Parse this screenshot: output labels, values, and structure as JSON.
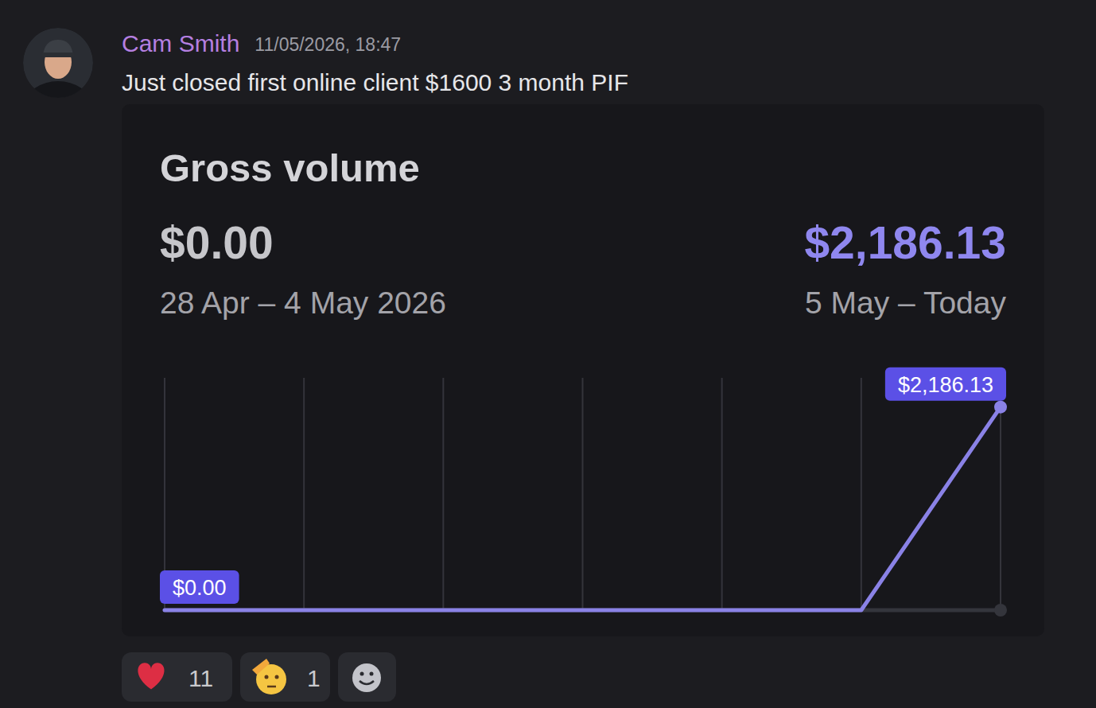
{
  "message": {
    "author": "Cam Smith",
    "timestamp": "11/05/2026, 18:47",
    "text": "Just closed first online client $1600 3 month PIF"
  },
  "chart_data": {
    "type": "line",
    "title": "Gross volume",
    "summary": [
      {
        "label": "$0.00",
        "period": "28 Apr – 4 May 2026"
      },
      {
        "label": "$2,186.13",
        "period": "5 May – Today"
      }
    ],
    "categories": [
      null,
      null,
      null,
      null,
      null,
      null,
      null
    ],
    "series": [
      {
        "color": "#34353c",
        "marker": "end-dot",
        "values": [
          0,
          0,
          0,
          0,
          0,
          0,
          0
        ]
      },
      {
        "color": "#8a82e6",
        "marker": "end-dot",
        "values": [
          0,
          0,
          0,
          0,
          0,
          0,
          2186.13
        ]
      }
    ],
    "annotations": [
      {
        "text": "$0.00",
        "x": 0,
        "y": 0
      },
      {
        "text": "$2,186.13",
        "x": 6,
        "y": 2186.13
      }
    ],
    "ylim": [
      0,
      2500
    ],
    "grid": true,
    "tick_labels": false
  },
  "reactions": [
    {
      "count": 11
    },
    {
      "count": 1
    }
  ]
}
